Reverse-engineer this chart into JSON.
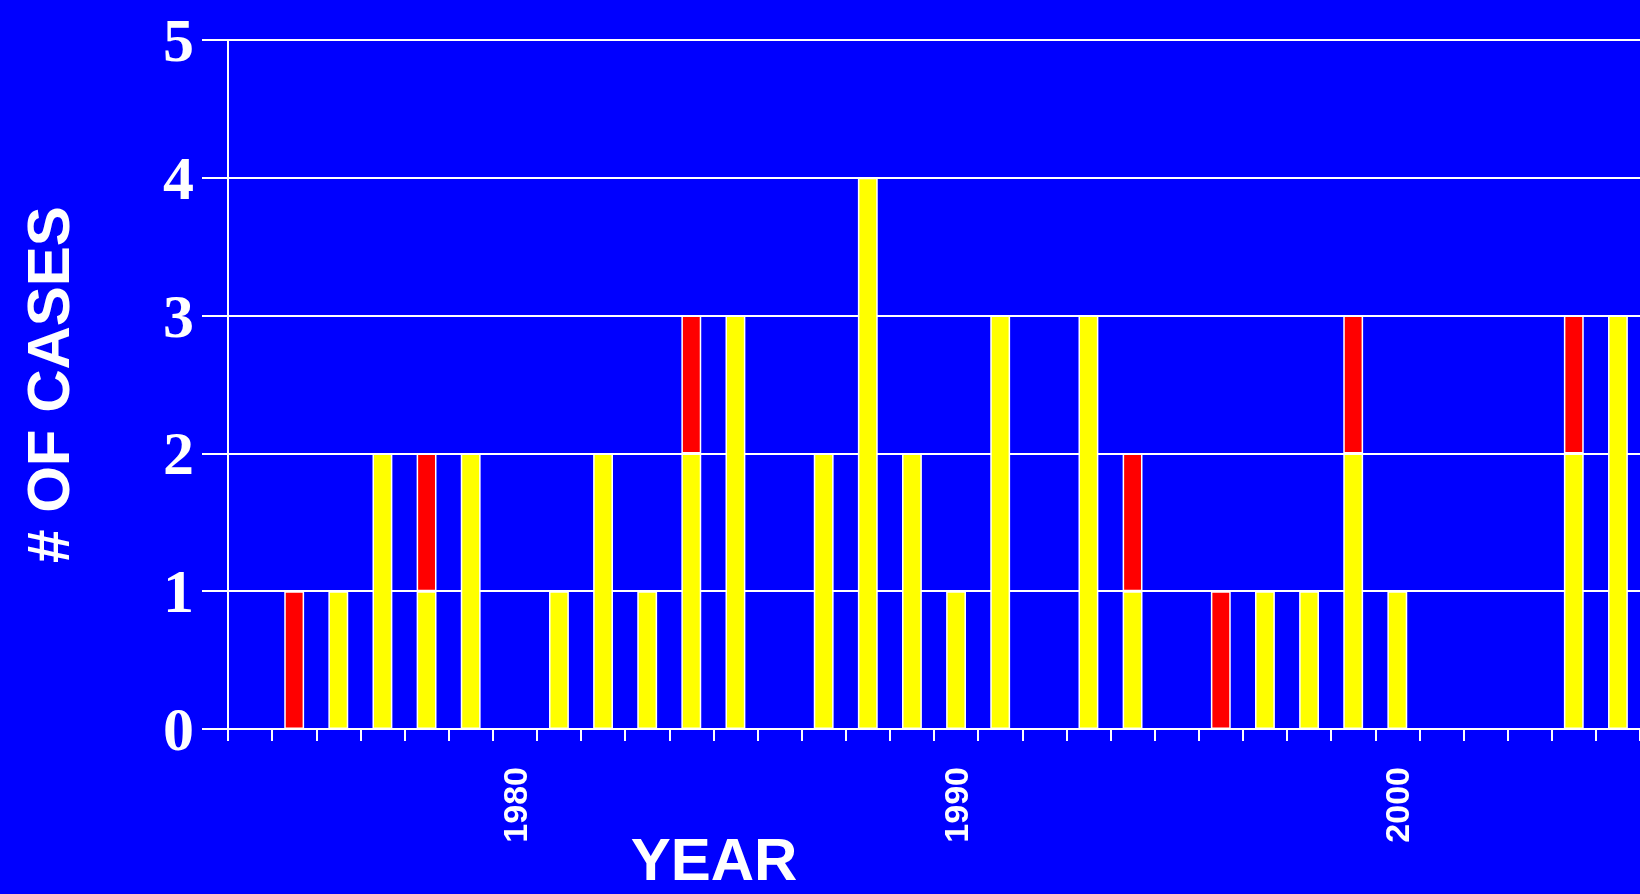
{
  "chart_data": {
    "type": "bar",
    "stacked": true,
    "xlabel": "YEAR",
    "ylabel": "# OF CASES",
    "categories": [
      null,
      null,
      null,
      null,
      null,
      null,
      "1980",
      null,
      null,
      null,
      null,
      null,
      null,
      null,
      null,
      null,
      "1990",
      null,
      null,
      null,
      null,
      null,
      null,
      null,
      null,
      null,
      "2000",
      null,
      null,
      null,
      null,
      null
    ],
    "series": [
      {
        "color": "#ffff00",
        "values": [
          0,
          0,
          1,
          2,
          1,
          2,
          0,
          1,
          2,
          1,
          2,
          3,
          0,
          2,
          4,
          2,
          1,
          3,
          0,
          3,
          1,
          0,
          0,
          1,
          1,
          2,
          1,
          0,
          0,
          0,
          2,
          3
        ]
      },
      {
        "color": "#ff0000",
        "values": [
          0,
          1,
          0,
          0,
          1,
          0,
          0,
          0,
          0,
          0,
          1,
          0,
          0,
          0,
          0,
          0,
          0,
          0,
          0,
          0,
          1,
          0,
          1,
          0,
          0,
          1,
          0,
          0,
          0,
          0,
          1,
          0
        ]
      }
    ],
    "ylim": [
      0,
      5
    ],
    "yticks": [
      0,
      1,
      2,
      3,
      4,
      5
    ],
    "grid": "y"
  }
}
